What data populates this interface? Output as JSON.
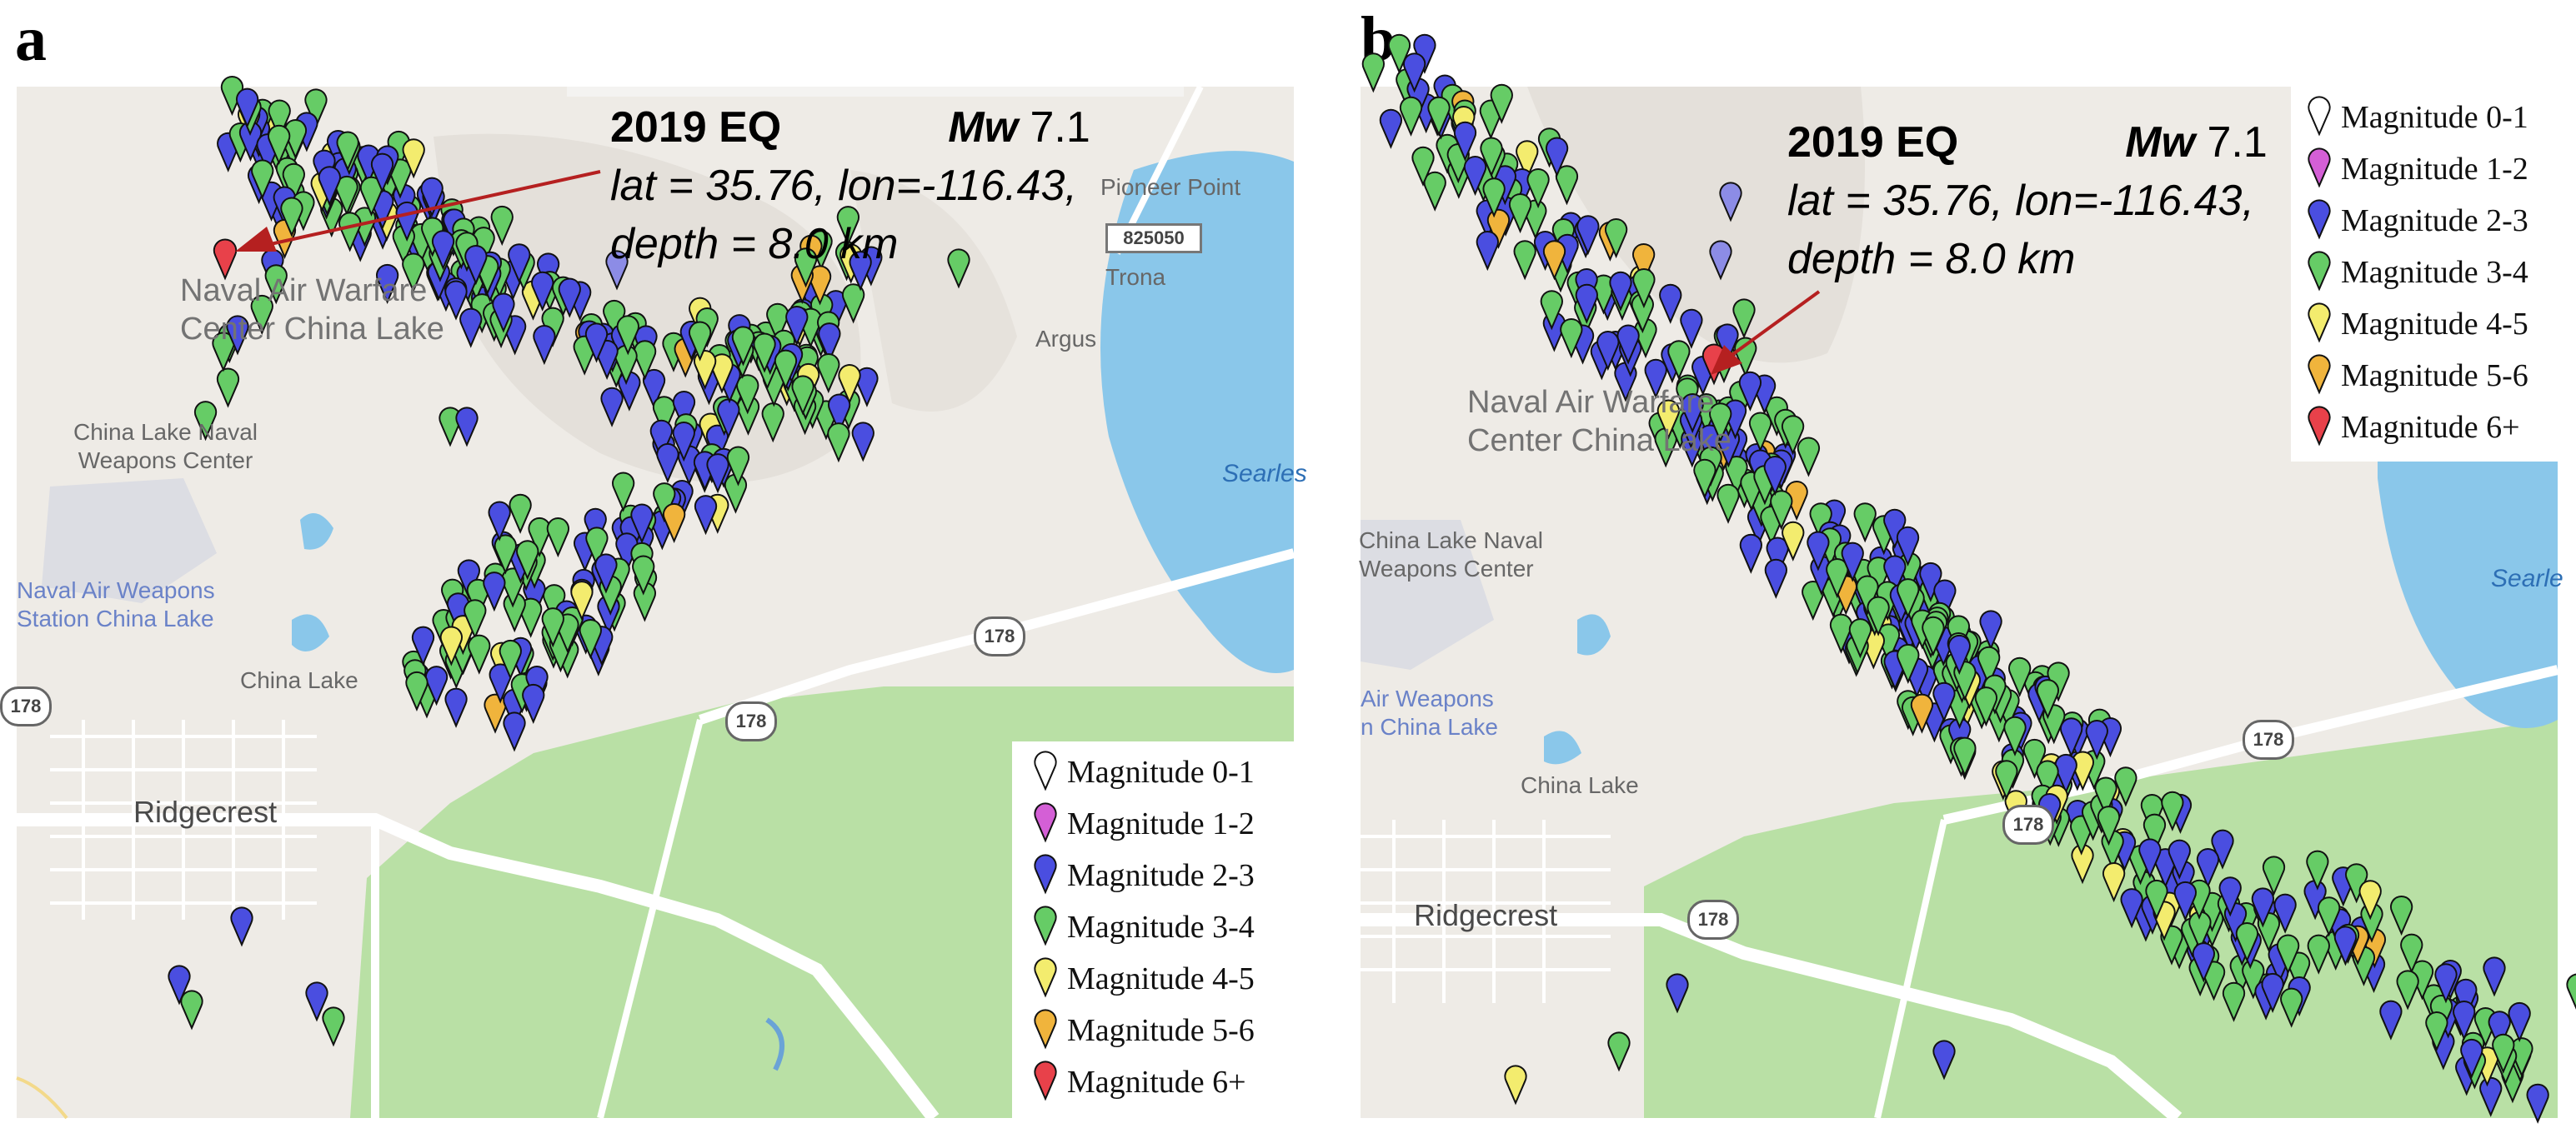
{
  "panels": [
    {
      "letter": "a",
      "places": {
        "naval_warfare": "Naval Air Warfare\nCenter China Lake",
        "china_lake_naval": "China Lake Naval\nWeapons Center",
        "naval_weapons_station": "Naval Air Weapons\nStation China Lake",
        "china_lake": "China Lake",
        "ridgecrest": "Ridgecrest",
        "pioneer_point": "Pioneer Point",
        "trona": "Trona",
        "argus": "Argus",
        "searles": "Searles"
      },
      "route_shields": {
        "r178a": "178",
        "r178b": "178",
        "r178c": "178",
        "r825050": "825050"
      },
      "annotation": {
        "title": "2019 EQ",
        "mw_label": "Mw",
        "mw_value": "7.1",
        "line2": "lat = 35.76, lon=-116.43,",
        "line3": "depth = 8.0 km"
      }
    },
    {
      "letter": "b",
      "places": {
        "naval_warfare": "Naval Air Warfare\nCenter China Lake",
        "china_lake_naval": "China Lake Naval\nWeapons Center",
        "naval_weapons_station": "Air Weapons\nn China Lake",
        "china_lake": "China Lake",
        "ridgecrest": "Ridgecrest",
        "searles": "Searle"
      },
      "route_shields": {
        "r178a": "178",
        "r178b": "178",
        "r178c": "178"
      },
      "annotation": {
        "title": "2019 EQ",
        "mw_label": "Mw",
        "mw_value": "7.1",
        "line2": "lat = 35.76, lon=-116.43,",
        "line3": "depth = 8.0 km"
      }
    }
  ],
  "legend": [
    {
      "label": "Magnitude 0-1",
      "color": "#ffffff"
    },
    {
      "label": "Magnitude 1-2",
      "color": "#d45fd6"
    },
    {
      "label": "Magnitude 2-3",
      "color": "#4a4ee0"
    },
    {
      "label": "Magnitude 3-4",
      "color": "#66cc66"
    },
    {
      "label": "Magnitude 4-5",
      "color": "#f3ec6e"
    },
    {
      "label": "Magnitude 5-6",
      "color": "#f0b43c"
    },
    {
      "label": "Magnitude 6+",
      "color": "#e8414a"
    }
  ],
  "colors": {
    "land": "#eeebe6",
    "park": "#b9e0a5",
    "water": "#8ac7ea",
    "military": "#dcdde3",
    "road": "#ffffff",
    "arrow": "#b52020"
  }
}
